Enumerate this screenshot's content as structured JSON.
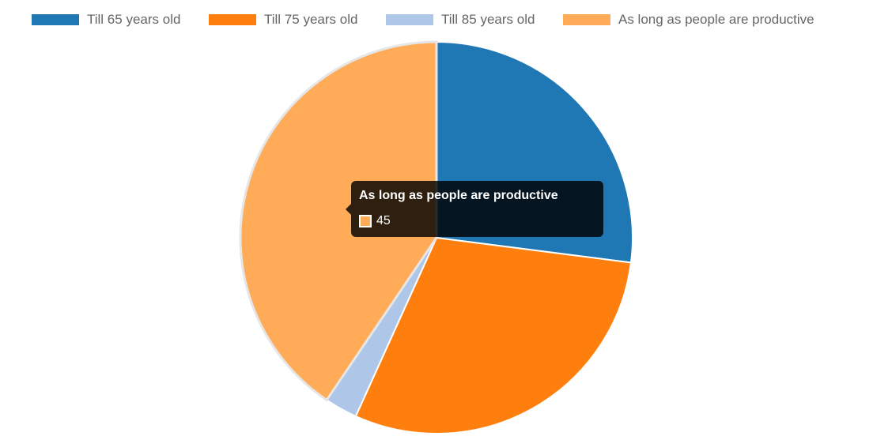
{
  "chart_data": {
    "type": "pie",
    "categories": [
      "Till 65 years old",
      "Till 75 years old",
      "Till 85 years old",
      "As long as people are productive"
    ],
    "values": [
      30,
      33,
      3,
      45
    ],
    "colors": [
      "#1f77b4",
      "#ff7f0e",
      "#aec7e8",
      "#ffab57"
    ],
    "legend_position": "top",
    "tooltip": {
      "title": "As long as people are productive",
      "value": "45",
      "color": "#ffab57"
    }
  }
}
